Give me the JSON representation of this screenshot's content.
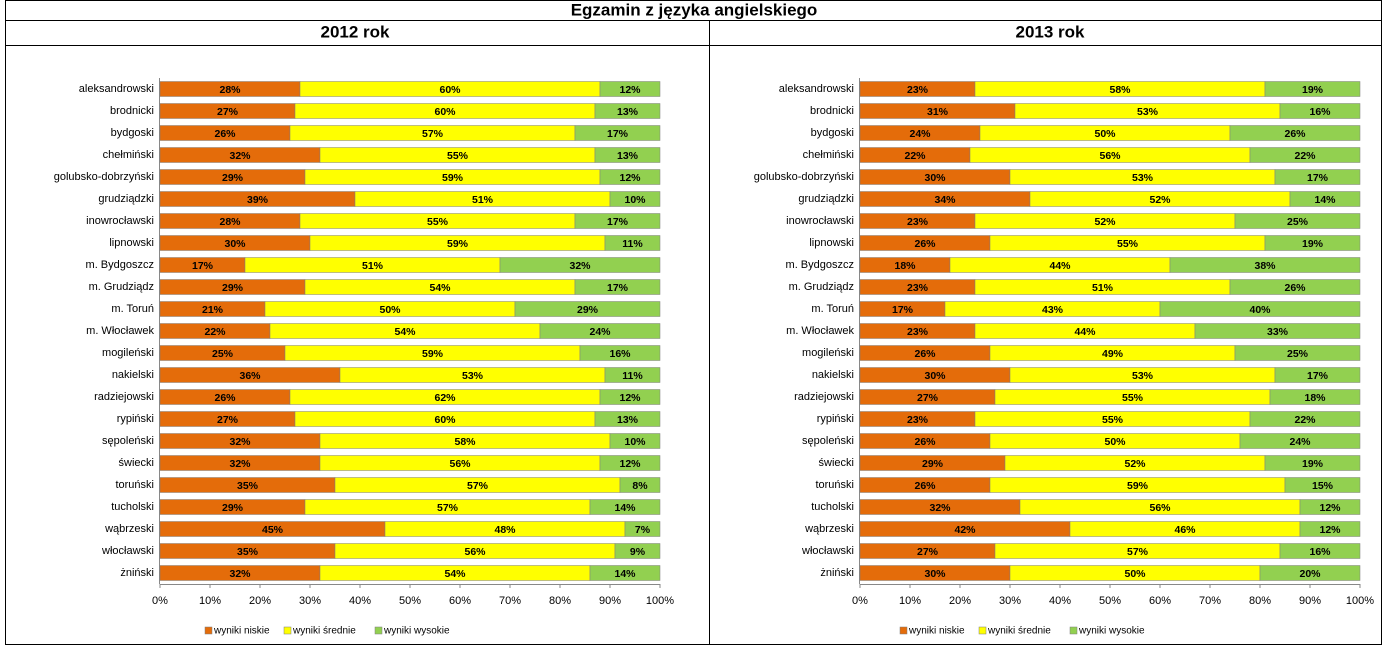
{
  "header": {
    "title": "Egzamin z języka angielskiego"
  },
  "chart_data": [
    {
      "type": "bar",
      "orientation": "horizontal",
      "stacked": true,
      "title": "2012 rok",
      "categories": [
        "aleksandrowski",
        "brodnicki",
        "bydgoski",
        "chełmiński",
        "golubsko-dobrzyński",
        "grudziądzki",
        "inowrocławski",
        "lipnowski",
        "m. Bydgoszcz",
        "m. Grudziądz",
        "m. Toruń",
        "m. Włocławek",
        "mogileński",
        "nakielski",
        "radziejowski",
        "rypiński",
        "sępoleński",
        "świecki",
        "toruński",
        "tucholski",
        "wąbrzeski",
        "włocławski",
        "żniński"
      ],
      "series": [
        {
          "name": "wyniki niskie",
          "color": "#e46c0a",
          "values": [
            28,
            27,
            26,
            32,
            29,
            39,
            28,
            30,
            17,
            29,
            21,
            22,
            25,
            36,
            26,
            27,
            32,
            32,
            35,
            29,
            45,
            35,
            32
          ],
          "value_labels": [
            "28%",
            "27%",
            "26%",
            "32%",
            "29%",
            "39%",
            "28%",
            "30%",
            "17%",
            "29%",
            "21%",
            "22%",
            "25%",
            "36%",
            "26%",
            "27%",
            "32%",
            "32%",
            "35%",
            "29%",
            "45%",
            "35%",
            "32%"
          ]
        },
        {
          "name": "wyniki średnie",
          "color": "#ffff00",
          "values": [
            60,
            60,
            57,
            55,
            59,
            51,
            55,
            59,
            51,
            54,
            50,
            54,
            59,
            53,
            62,
            60,
            58,
            56,
            57,
            57,
            48,
            56,
            54
          ],
          "value_labels": [
            "60%",
            "60%",
            "57%",
            "55%",
            "59%",
            "51%",
            "55%",
            "59%",
            "51%",
            "54%",
            "50%",
            "54%",
            "59%",
            "53%",
            "62%",
            "60%",
            "58%",
            "56%",
            "57%",
            "57%",
            "48%",
            "56%",
            "54%"
          ]
        },
        {
          "name": "wyniki wysokie",
          "color": "#92d050",
          "values": [
            12,
            13,
            17,
            13,
            12,
            10,
            17,
            11,
            32,
            17,
            29,
            24,
            16,
            11,
            12,
            13,
            10,
            12,
            8,
            14,
            7,
            9,
            14
          ],
          "value_labels": [
            "12%",
            "13%",
            "17%",
            "13%",
            "12%",
            "10%",
            "17%",
            "11%",
            "32%",
            "17%",
            "29%",
            "24%",
            "16%",
            "11%",
            "12%",
            "13%",
            "10%",
            "12%",
            "8%",
            "14%",
            "7%",
            "9%",
            "14%"
          ]
        }
      ],
      "xlim": [
        0,
        100
      ],
      "xticks": [
        {
          "value": 0,
          "label": "0%"
        },
        {
          "value": 10,
          "label": "10%"
        },
        {
          "value": 20,
          "label": "20%"
        },
        {
          "value": 30,
          "label": "30%"
        },
        {
          "value": 40,
          "label": "40%"
        },
        {
          "value": 50,
          "label": "50%"
        },
        {
          "value": 60,
          "label": "60%"
        },
        {
          "value": 70,
          "label": "70%"
        },
        {
          "value": 80,
          "label": "80%"
        },
        {
          "value": 90,
          "label": "90%"
        },
        {
          "value": 100,
          "label": "100%"
        }
      ],
      "legend": "bottom"
    },
    {
      "type": "bar",
      "orientation": "horizontal",
      "stacked": true,
      "title": "2013 rok",
      "categories": [
        "aleksandrowski",
        "brodnicki",
        "bydgoski",
        "chełmiński",
        "golubsko-dobrzyński",
        "grudziądzki",
        "inowrocławski",
        "lipnowski",
        "m. Bydgoszcz",
        "m. Grudziądz",
        "m. Toruń",
        "m. Włocławek",
        "mogileński",
        "nakielski",
        "radziejowski",
        "rypiński",
        "sępoleński",
        "świecki",
        "toruński",
        "tucholski",
        "wąbrzeski",
        "włocławski",
        "żniński"
      ],
      "series": [
        {
          "name": "wyniki niskie",
          "color": "#e46c0a",
          "values": [
            23,
            31,
            24,
            22,
            30,
            34,
            23,
            26,
            18,
            23,
            17,
            23,
            26,
            30,
            27,
            23,
            26,
            29,
            26,
            32,
            42,
            27,
            30
          ],
          "value_labels": [
            "23%",
            "31%",
            "24%",
            "22%",
            "30%",
            "34%",
            "23%",
            "26%",
            "18%",
            "23%",
            "17%",
            "23%",
            "26%",
            "30%",
            "27%",
            "23%",
            "26%",
            "29%",
            "26%",
            "32%",
            "42%",
            "27%",
            "30%"
          ]
        },
        {
          "name": "wyniki średnie",
          "color": "#ffff00",
          "values": [
            58,
            53,
            50,
            56,
            53,
            52,
            52,
            55,
            44,
            51,
            43,
            44,
            49,
            53,
            55,
            55,
            50,
            52,
            59,
            56,
            46,
            57,
            50
          ],
          "value_labels": [
            "58%",
            "53%",
            "50%",
            "56%",
            "53%",
            "52%",
            "52%",
            "55%",
            "44%",
            "51%",
            "43%",
            "44%",
            "49%",
            "53%",
            "55%",
            "55%",
            "50%",
            "52%",
            "59%",
            "56%",
            "46%",
            "57%",
            "50%"
          ]
        },
        {
          "name": "wyniki wysokie",
          "color": "#92d050",
          "values": [
            19,
            16,
            26,
            22,
            17,
            14,
            25,
            19,
            38,
            26,
            40,
            33,
            25,
            17,
            18,
            22,
            24,
            19,
            15,
            12,
            12,
            16,
            20
          ],
          "value_labels": [
            "19%",
            "16%",
            "26%",
            "22%",
            "17%",
            "14%",
            "25%",
            "19%",
            "38%",
            "26%",
            "40%",
            "33%",
            "25%",
            "17%",
            "18%",
            "22%",
            "24%",
            "19%",
            "15%",
            "12%",
            "12%",
            "16%",
            "20%"
          ]
        }
      ],
      "xlim": [
        0,
        100
      ],
      "xticks": [
        {
          "value": 0,
          "label": "0%"
        },
        {
          "value": 10,
          "label": "10%"
        },
        {
          "value": 20,
          "label": "20%"
        },
        {
          "value": 30,
          "label": "30%"
        },
        {
          "value": 40,
          "label": "40%"
        },
        {
          "value": 50,
          "label": "50%"
        },
        {
          "value": 60,
          "label": "60%"
        },
        {
          "value": 70,
          "label": "70%"
        },
        {
          "value": 80,
          "label": "80%"
        },
        {
          "value": 90,
          "label": "90%"
        },
        {
          "value": 100,
          "label": "100%"
        }
      ],
      "legend": "bottom"
    }
  ]
}
